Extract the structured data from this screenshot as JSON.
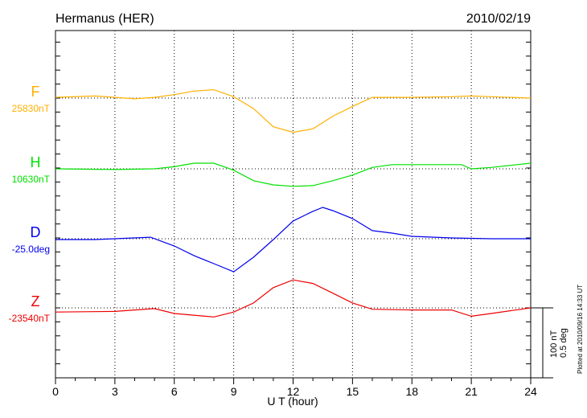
{
  "title_left": "Hermanus (HER)",
  "title_right": "2010/02/19",
  "plotted_note": "Plotted at 2010/09/16 14:33 UT",
  "scale_bar": {
    "line1": "100 nT",
    "line2": "0.5 deg"
  },
  "chart_data": {
    "type": "line",
    "xlabel": "U T (hour)",
    "xlim": [
      0,
      24
    ],
    "xticks": [
      "0",
      "3",
      "6",
      "9",
      "12",
      "15",
      "18",
      "21",
      "24"
    ],
    "grid": "dotted vertical every 3 hours, dotted horizontal at each baseline",
    "scale": {
      "nT_per_bar": 100,
      "deg_per_bar": 0.5
    },
    "series": [
      {
        "name": "F",
        "baseline_label": "25830nT",
        "baseline": 25830,
        "unit": "nT",
        "color": "#ffb000",
        "x": [
          0,
          2,
          4,
          5,
          6,
          7,
          8,
          9,
          10,
          11,
          12,
          13,
          14,
          15,
          16,
          18,
          20,
          21,
          22,
          24
        ],
        "y": [
          25831,
          25833,
          25829,
          25831,
          25835,
          25840,
          25842,
          25832,
          25815,
          25789,
          25781,
          25786,
          25804,
          25818,
          25831,
          25831,
          25832,
          25833,
          25832,
          25830
        ]
      },
      {
        "name": "H",
        "baseline_label": "10630nT",
        "baseline": 10630,
        "unit": "nT",
        "color": "#00e000",
        "x": [
          0,
          3,
          5,
          6,
          7,
          8,
          9,
          10,
          11,
          12,
          13,
          14,
          15,
          16,
          17,
          19,
          20.5,
          21,
          22,
          24
        ],
        "y": [
          10630,
          10629,
          10630,
          10633,
          10638,
          10638,
          10628,
          10613,
          10607,
          10605,
          10606,
          10613,
          10621,
          10632,
          10636,
          10636,
          10636,
          10630,
          10632,
          10638
        ]
      },
      {
        "name": "D",
        "baseline_label": "-25.0deg",
        "baseline": -25.0,
        "unit": "deg",
        "color": "#0000ee",
        "x": [
          0,
          2,
          4.8,
          6,
          7,
          8,
          9,
          10,
          11,
          12,
          13,
          13.5,
          14,
          15,
          16,
          17,
          18,
          20,
          22,
          24
        ],
        "y": [
          -25.006,
          -25.006,
          -24.989,
          -25.052,
          -25.121,
          -25.178,
          -25.236,
          -25.132,
          -25.006,
          -24.873,
          -24.804,
          -24.776,
          -24.799,
          -24.856,
          -24.942,
          -24.96,
          -24.983,
          -24.994,
          -25.0,
          -25.0
        ]
      },
      {
        "name": "Z",
        "baseline_label": "-23540nT",
        "baseline": -23540,
        "unit": "nT",
        "color": "#ee0000",
        "x": [
          0,
          3,
          5,
          6,
          8,
          9,
          10,
          11,
          12,
          13,
          14,
          15,
          16,
          18,
          20,
          21,
          22,
          24
        ],
        "y": [
          -23546,
          -23545,
          -23541,
          -23548,
          -23553,
          -23546,
          -23533,
          -23511,
          -23500,
          -23505,
          -23519,
          -23533,
          -23542,
          -23543,
          -23543,
          -23552,
          -23548,
          -23540
        ]
      }
    ]
  }
}
